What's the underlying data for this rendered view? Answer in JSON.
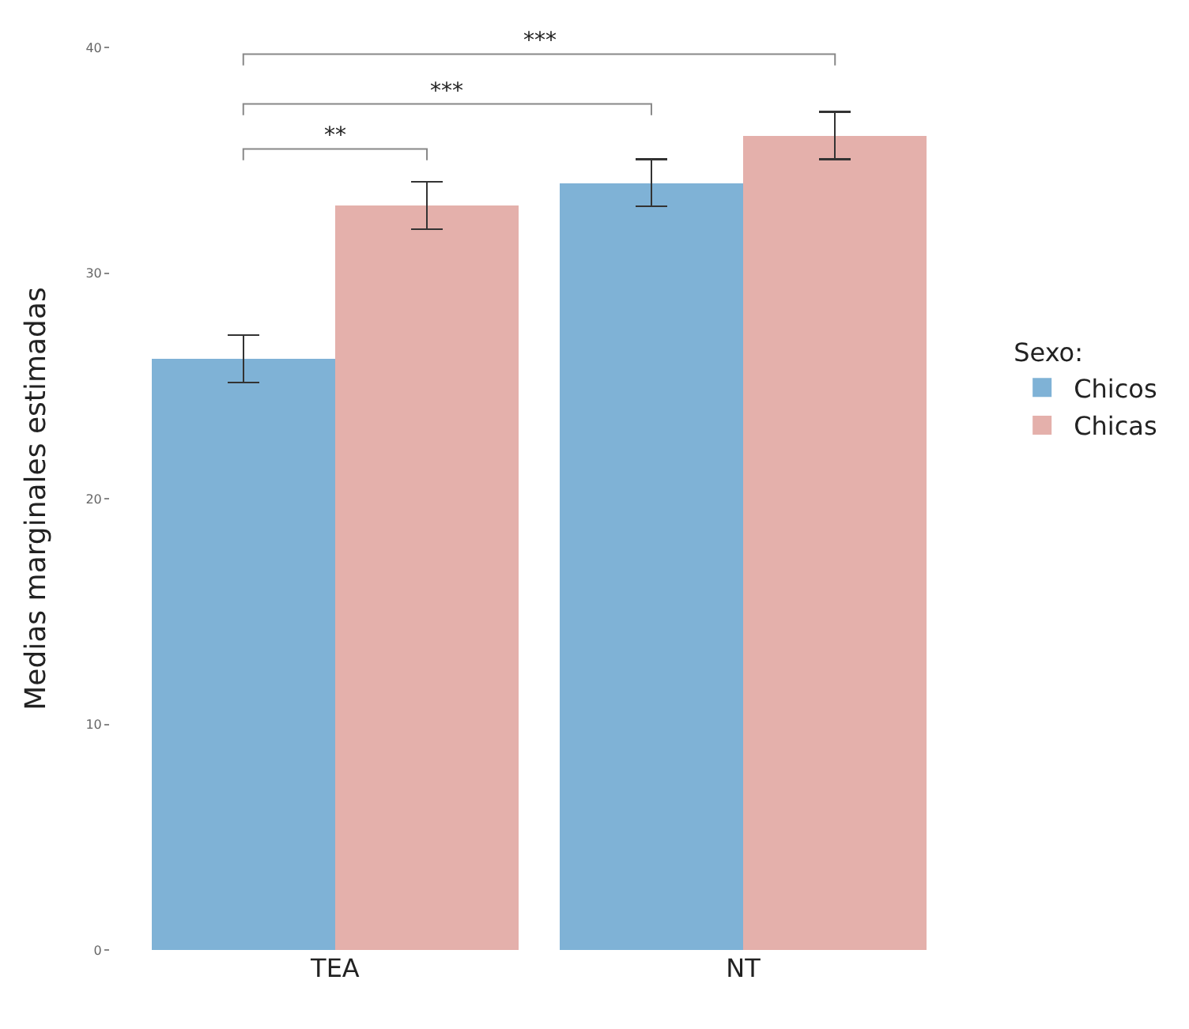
{
  "chart_data": {
    "type": "bar",
    "ylabel": "Medias marginales estimadas",
    "legend_title": "Sexo:",
    "categories": [
      "TEA",
      "NT"
    ],
    "series": [
      {
        "name": "Chicos",
        "color": "#7fb2d6",
        "values": [
          26.2,
          34.0
        ],
        "errors": [
          1.05,
          1.05
        ]
      },
      {
        "name": "Chicas",
        "color": "#e4b0ab",
        "values": [
          33.0,
          36.1
        ],
        "errors": [
          1.05,
          1.05
        ]
      }
    ],
    "ylim": [
      0,
      40
    ],
    "yticks": [
      0,
      10,
      20,
      30,
      40
    ],
    "legend": "right",
    "annotations": [
      "**",
      "***",
      "***"
    ]
  }
}
